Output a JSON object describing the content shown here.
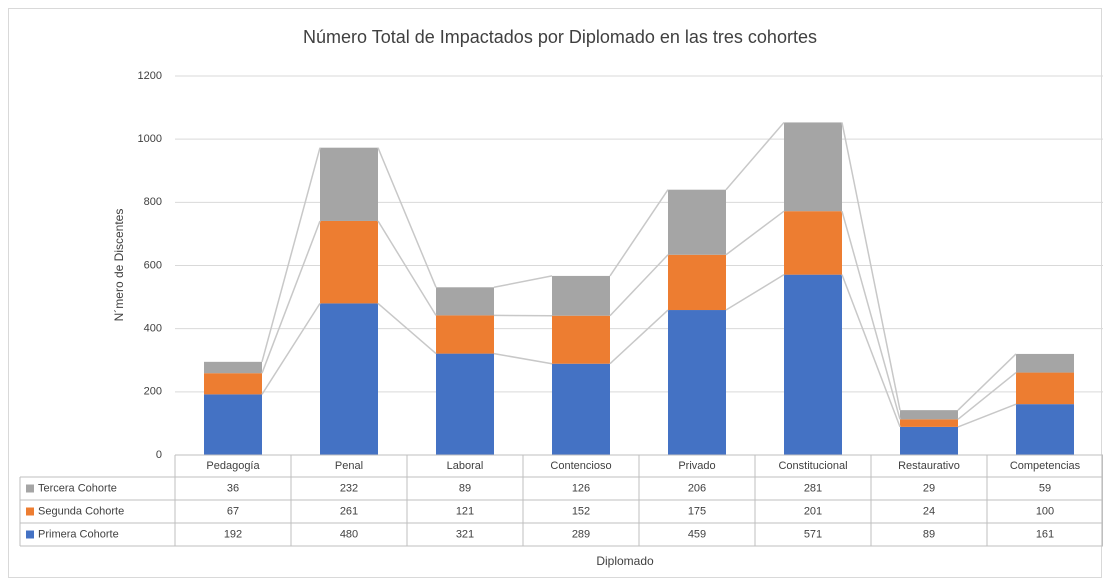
{
  "chart_data": {
    "type": "stacked_bar",
    "title": "Número Total de Impactados por Diplomado en las tres cohortes",
    "x_label": "Diplomado",
    "y_label": "N´mero de Discentes",
    "categories": [
      "Pedagogía",
      "Penal",
      "Laboral",
      "Contencioso",
      "Privado",
      "Constitucional",
      "Restaurativo",
      "Competencias"
    ],
    "series": [
      {
        "name": "Primera Cohorte",
        "color": "#4472c4",
        "values": [
          192,
          480,
          321,
          289,
          459,
          571,
          89,
          161
        ]
      },
      {
        "name": "Segunda Cohorte",
        "color": "#ed7d31",
        "values": [
          67,
          261,
          121,
          152,
          175,
          201,
          24,
          100
        ]
      },
      {
        "name": "Tercera Cohorte",
        "color": "#a5a5a5",
        "values": [
          36,
          232,
          89,
          126,
          206,
          281,
          29,
          59
        ]
      }
    ],
    "ylim": [
      0,
      1200
    ],
    "yticks": [
      0,
      200,
      400,
      600,
      800,
      1000,
      1200
    ],
    "grid": true,
    "series_lines": true,
    "data_table": true
  }
}
